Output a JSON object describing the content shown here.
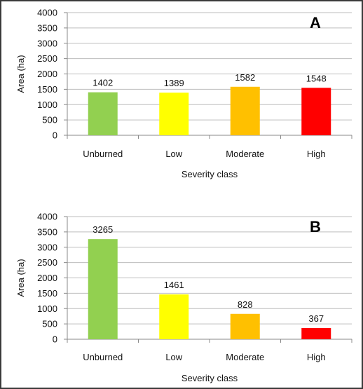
{
  "chart_data": [
    {
      "type": "bar",
      "panel_label": "A",
      "categories": [
        "Unburned",
        "Low",
        "Moderate",
        "High"
      ],
      "values": [
        1402,
        1389,
        1582,
        1548
      ],
      "colors": [
        "#92d050",
        "#ffff00",
        "#ffc000",
        "#ff0000"
      ],
      "xlabel": "Severity class",
      "ylabel": "Area (ha)",
      "ylim": [
        0,
        4000
      ],
      "yticks": [
        0,
        500,
        1000,
        1500,
        2000,
        2500,
        3000,
        3500,
        4000
      ],
      "grid": true,
      "data_labels": true,
      "legend": "none"
    },
    {
      "type": "bar",
      "panel_label": "B",
      "categories": [
        "Unburned",
        "Low",
        "Moderate",
        "High"
      ],
      "values": [
        3265,
        1461,
        828,
        367
      ],
      "colors": [
        "#92d050",
        "#ffff00",
        "#ffc000",
        "#ff0000"
      ],
      "xlabel": "Severity class",
      "ylabel": "Area (ha)",
      "ylim": [
        0,
        4000
      ],
      "yticks": [
        0,
        500,
        1000,
        1500,
        2000,
        2500,
        3000,
        3500,
        4000
      ],
      "grid": true,
      "data_labels": true,
      "legend": "none"
    }
  ]
}
